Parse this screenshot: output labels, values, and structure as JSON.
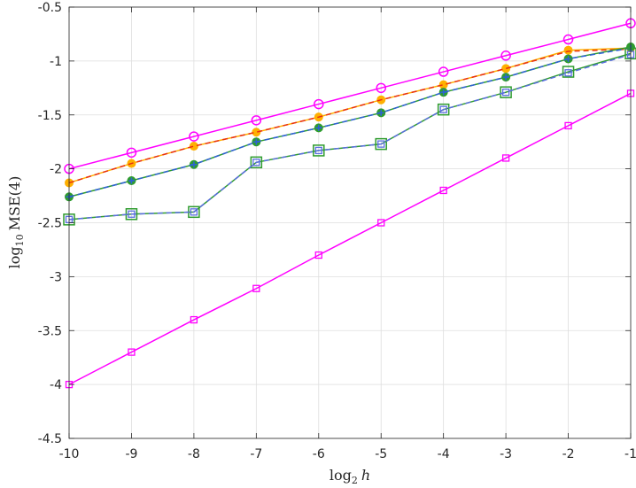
{
  "chart_data": {
    "type": "line",
    "xlabel": {
      "prefix": "log",
      "sub": "2",
      "var": "h"
    },
    "ylabel": {
      "prefix": "log",
      "sub": "10",
      "rest": "MSE(4)"
    },
    "xlim": [
      -10,
      -1
    ],
    "ylim": [
      -4.5,
      -0.5
    ],
    "xticks": [
      "-10",
      "-9",
      "-8",
      "-7",
      "-6",
      "-5",
      "-4",
      "-3",
      "-2",
      "-1"
    ],
    "yticks": [
      "-0.5",
      "-1",
      "-1.5",
      "-2",
      "-2.5",
      "-3",
      "-3.5",
      "-4",
      "-4.5"
    ],
    "grid": true,
    "x": [
      -10,
      -9,
      -8,
      -7,
      -6,
      -5,
      -4,
      -3,
      -2,
      -1
    ],
    "series": [
      {
        "color": "#ff00ff",
        "marker": "circle",
        "dashed": false,
        "values": [
          -2.0,
          -1.85,
          -1.7,
          -1.55,
          -1.4,
          -1.25,
          -1.1,
          -0.95,
          -0.8,
          -0.65
        ]
      },
      {
        "color": "#ff00ff",
        "marker": "square",
        "dashed": false,
        "values": [
          -4.0,
          -3.7,
          -3.4,
          -3.11,
          -2.8,
          -2.5,
          -2.2,
          -1.9,
          -1.6,
          -1.3
        ]
      },
      {
        "color": "#ffb000",
        "marker": "circle-filled",
        "dashed": false,
        "values": [
          -2.13,
          -1.95,
          -1.79,
          -1.66,
          -1.52,
          -1.36,
          -1.22,
          -1.07,
          -0.9,
          -0.88
        ]
      },
      {
        "color": "#e83010",
        "marker": "none",
        "dashed": true,
        "values": [
          -2.13,
          -1.95,
          -1.79,
          -1.66,
          -1.52,
          -1.36,
          -1.22,
          -1.07,
          -0.91,
          -0.89
        ]
      },
      {
        "color": "#2f9c2f",
        "marker": "circle-filled",
        "dashed": false,
        "values": [
          -2.26,
          -2.11,
          -1.96,
          -1.75,
          -1.62,
          -1.48,
          -1.29,
          -1.15,
          -0.98,
          -0.87
        ]
      },
      {
        "color": "#2f60d8",
        "marker": "plus",
        "dashed": true,
        "values": [
          -2.26,
          -2.11,
          -1.96,
          -1.75,
          -1.62,
          -1.48,
          -1.29,
          -1.15,
          -0.98,
          -0.88
        ]
      },
      {
        "color": "#2f9c2f",
        "marker": "square-large",
        "dashed": false,
        "values": [
          -2.47,
          -2.42,
          -2.4,
          -1.94,
          -1.83,
          -1.77,
          -1.45,
          -1.29,
          -1.1,
          -0.93
        ]
      },
      {
        "color": "#5a6ee0",
        "marker": "square-small",
        "dashed": true,
        "values": [
          -2.47,
          -2.42,
          -2.4,
          -1.94,
          -1.83,
          -1.77,
          -1.45,
          -1.29,
          -1.11,
          -0.94
        ]
      }
    ]
  }
}
